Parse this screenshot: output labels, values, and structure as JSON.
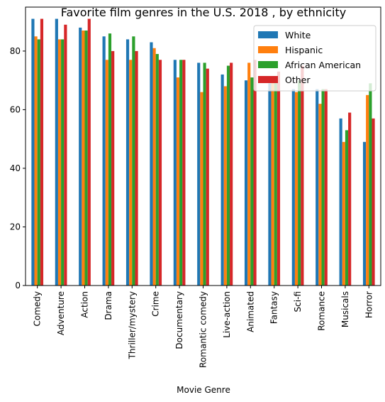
{
  "chart_data": {
    "type": "bar",
    "title": "Favorite film genres in the U.S. 2018 , by ethnicity",
    "xlabel": "Movie Genre",
    "ylabel": "",
    "ylim": [
      0,
      95
    ],
    "yticks": [
      0,
      20,
      40,
      60,
      80
    ],
    "grid": false,
    "legend_position": "top-right",
    "categories": [
      "Comedy",
      "Adventure",
      "Action",
      "Drama",
      "Thriller/mystery",
      "Crime",
      "Documentary",
      "Romantic comedy",
      "Live-action",
      "Animated",
      "Fantasy",
      "Sci-fi",
      "Romance",
      "Musicals",
      "Horror"
    ],
    "series": [
      {
        "name": "White",
        "color": "#1f77b4",
        "values": [
          91,
          91,
          88,
          85,
          84,
          83,
          77,
          76,
          72,
          70,
          69,
          67,
          67,
          57,
          49
        ]
      },
      {
        "name": "Hispanic",
        "color": "#ff7f0e",
        "values": [
          85,
          84,
          87,
          77,
          77,
          81,
          71,
          66,
          68,
          76,
          70,
          66,
          62,
          49,
          65
        ]
      },
      {
        "name": "African American",
        "color": "#2ca02c",
        "values": [
          84,
          84,
          87,
          86,
          85,
          79,
          77,
          76,
          75,
          71,
          71,
          70,
          67,
          53,
          69
        ]
      },
      {
        "name": "Other",
        "color": "#d62728",
        "values": [
          91,
          89,
          91,
          80,
          80,
          77,
          77,
          74,
          76,
          77,
          73,
          75,
          67,
          59,
          57
        ]
      }
    ]
  }
}
